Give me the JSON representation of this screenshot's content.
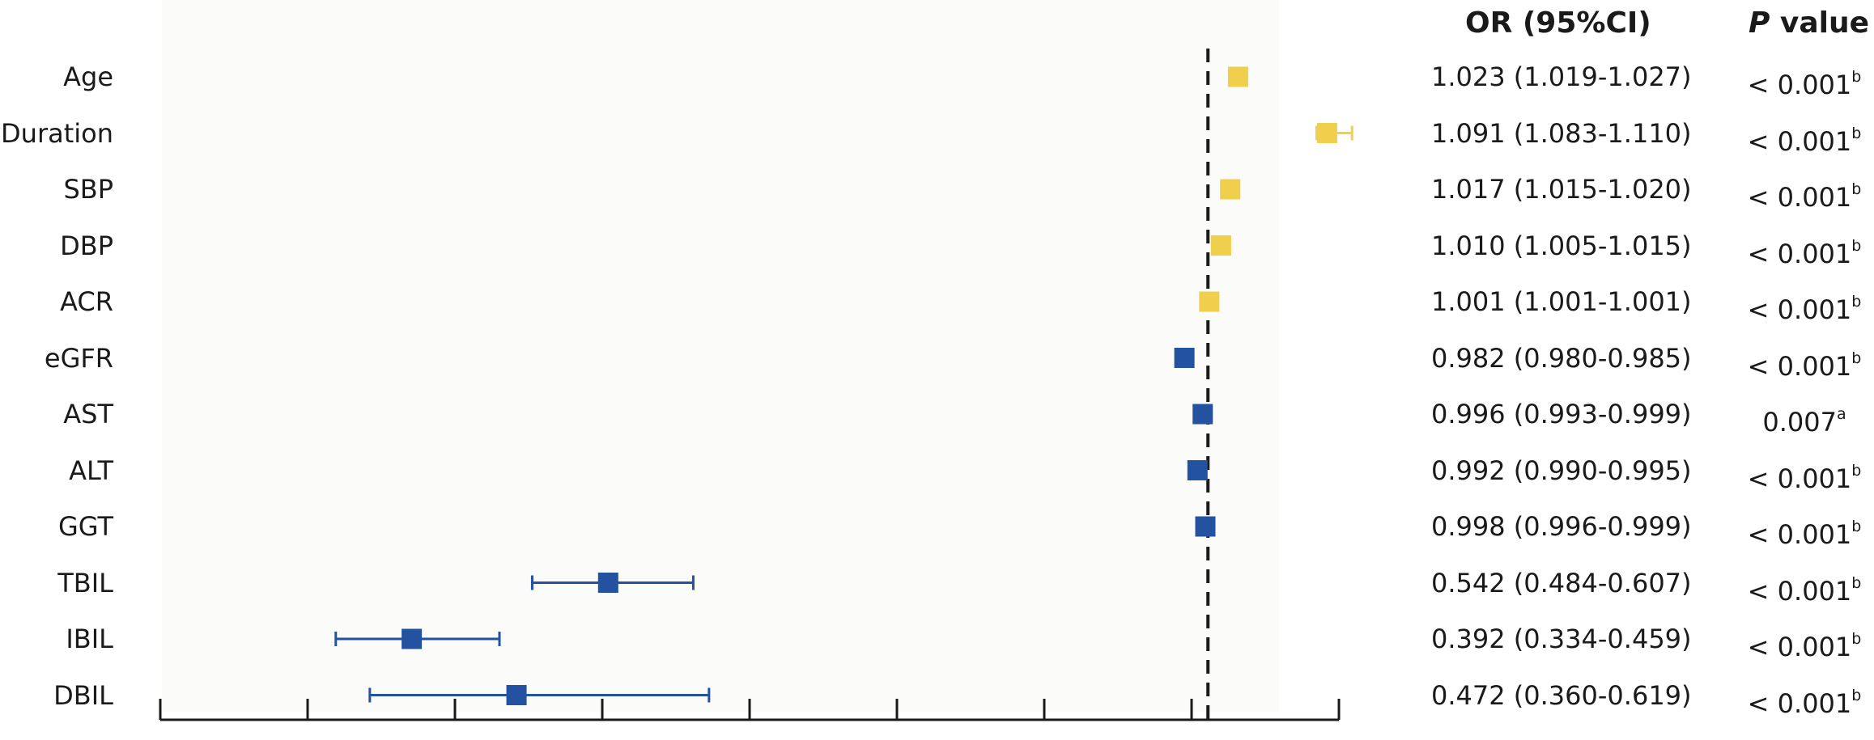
{
  "headers": {
    "or": "OR (95%CI)",
    "p_italic": "P",
    "p_rest": " value"
  },
  "colors": {
    "risk": "#efcf4b",
    "protective": "#2352a0",
    "axis": "#1a1a1a",
    "reference": "#1a1a1a"
  },
  "chart_data": {
    "type": "forest",
    "title": "",
    "xlabel": "",
    "ylabel": "",
    "reference_line": 1.0,
    "reference_style": "dashed",
    "xlim": [
      0.2,
      1.1
    ],
    "x_tick_count": 9,
    "x_tick_labels": [],
    "grid": false,
    "legend": "none",
    "rows": [
      {
        "label": "Age",
        "or": 1.023,
        "lo": 1.019,
        "hi": 1.027,
        "or_text": "1.023 (1.019-1.027)",
        "p": "< 0.001",
        "sup": "b",
        "color": "#efcf4b"
      },
      {
        "label": "Duration",
        "or": 1.091,
        "lo": 1.083,
        "hi": 1.11,
        "or_text": "1.091 (1.083-1.110)",
        "p": "< 0.001",
        "sup": "b",
        "color": "#efcf4b"
      },
      {
        "label": "SBP",
        "or": 1.017,
        "lo": 1.015,
        "hi": 1.02,
        "or_text": "1.017 (1.015-1.020)",
        "p": "< 0.001",
        "sup": "b",
        "color": "#efcf4b"
      },
      {
        "label": "DBP",
        "or": 1.01,
        "lo": 1.005,
        "hi": 1.015,
        "or_text": "1.010 (1.005-1.015)",
        "p": "< 0.001",
        "sup": "b",
        "color": "#efcf4b"
      },
      {
        "label": "ACR",
        "or": 1.001,
        "lo": 1.001,
        "hi": 1.001,
        "or_text": "1.001 (1.001-1.001)",
        "p": "< 0.001",
        "sup": "b",
        "color": "#efcf4b"
      },
      {
        "label": "eGFR",
        "or": 0.982,
        "lo": 0.98,
        "hi": 0.985,
        "or_text": "0.982 (0.980-0.985)",
        "p": "< 0.001",
        "sup": "b",
        "color": "#2352a0"
      },
      {
        "label": "AST",
        "or": 0.996,
        "lo": 0.993,
        "hi": 0.999,
        "or_text": "0.996 (0.993-0.999)",
        "p": "0.007",
        "sup": "a",
        "color": "#2352a0"
      },
      {
        "label": "ALT",
        "or": 0.992,
        "lo": 0.99,
        "hi": 0.995,
        "or_text": "0.992 (0.990-0.995)",
        "p": "< 0.001",
        "sup": "b",
        "color": "#2352a0"
      },
      {
        "label": "GGT",
        "or": 0.998,
        "lo": 0.996,
        "hi": 0.999,
        "or_text": "0.998 (0.996-0.999)",
        "p": "< 0.001",
        "sup": "b",
        "color": "#2352a0"
      },
      {
        "label": "TBIL",
        "or": 0.542,
        "lo": 0.484,
        "hi": 0.607,
        "or_text": "0.542 (0.484-0.607)",
        "p": "< 0.001",
        "sup": "b",
        "color": "#2352a0"
      },
      {
        "label": "IBIL",
        "or": 0.392,
        "lo": 0.334,
        "hi": 0.459,
        "or_text": "0.392 (0.334-0.459)",
        "p": "< 0.001",
        "sup": "b",
        "color": "#2352a0"
      },
      {
        "label": "DBIL",
        "or": 0.472,
        "lo": 0.36,
        "hi": 0.619,
        "or_text": "0.472 (0.360-0.619)",
        "p": "< 0.001",
        "sup": "b",
        "color": "#2352a0"
      }
    ]
  }
}
